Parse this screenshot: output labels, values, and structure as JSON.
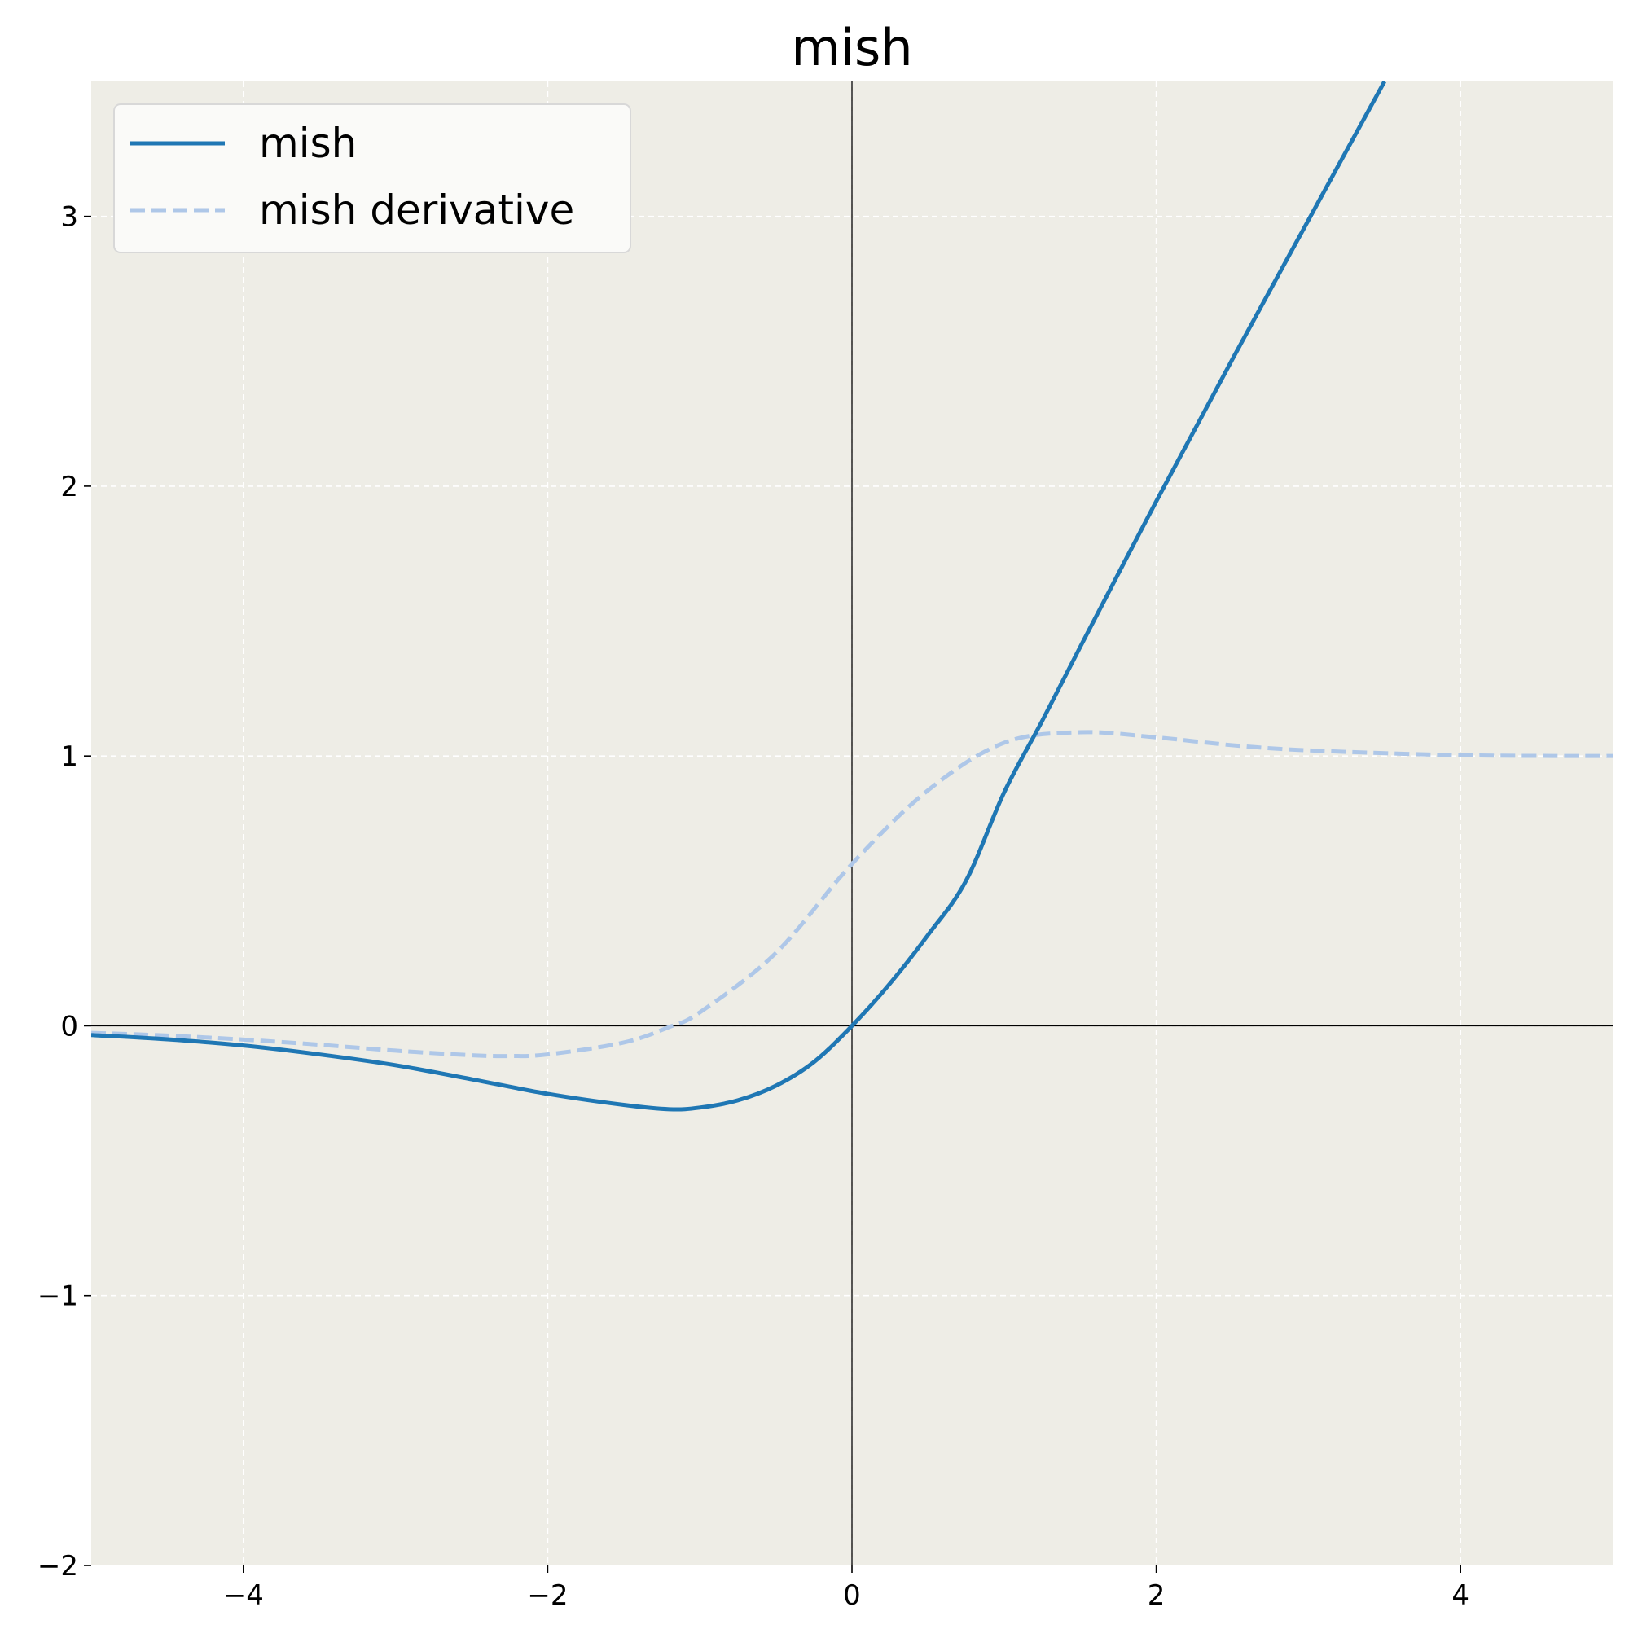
{
  "chart_data": {
    "type": "line",
    "title": "mish",
    "xlabel": "",
    "ylabel": "",
    "xlim": [
      -5,
      5
    ],
    "ylim": [
      -2,
      3.5
    ],
    "x_ticks": [
      -4,
      -2,
      0,
      2,
      4
    ],
    "x_tick_labels": [
      "−4",
      "−2",
      "0",
      "2",
      "4"
    ],
    "y_ticks": [
      -2,
      -1,
      0,
      1,
      2,
      3
    ],
    "y_tick_labels": [
      "−2",
      "−1",
      "0",
      "1",
      "2",
      "3"
    ],
    "grid": true,
    "legend_position": "top-left",
    "plot_background": "#eeede6",
    "grid_color": "#ffffff",
    "axis_line_color": "#000000",
    "series": [
      {
        "name": "mish",
        "style": "solid",
        "color": "#1f77b4",
        "x": [
          -5,
          -4.5,
          -4,
          -3.5,
          -3,
          -2.5,
          -2,
          -1.5,
          -1.2,
          -1,
          -0.75,
          -0.5,
          -0.25,
          0,
          0.25,
          0.5,
          0.75,
          1,
          1.25,
          1.5,
          2,
          2.5,
          3,
          3.5
        ],
        "y": [
          -0.034,
          -0.05,
          -0.073,
          -0.106,
          -0.146,
          -0.198,
          -0.252,
          -0.293,
          -0.309,
          -0.303,
          -0.276,
          -0.222,
          -0.134,
          0,
          0.157,
          0.337,
          0.538,
          0.865,
          1.13,
          1.404,
          1.944,
          2.47,
          2.986,
          3.5
        ]
      },
      {
        "name": "mish derivative",
        "style": "dashed",
        "color": "#aec7e8",
        "x": [
          -5,
          -4.5,
          -4,
          -3.5,
          -3,
          -2.5,
          -2.25,
          -2,
          -1.5,
          -1.2,
          -1,
          -0.5,
          0,
          0.5,
          1,
          1.5,
          2,
          2.5,
          3,
          4,
          5
        ],
        "y": [
          -0.026,
          -0.036,
          -0.051,
          -0.07,
          -0.092,
          -0.109,
          -0.112,
          -0.106,
          -0.062,
          -0.004,
          0.05,
          0.27,
          0.6,
          0.873,
          1.049,
          1.088,
          1.069,
          1.04,
          1.021,
          1.003,
          1.0
        ]
      }
    ]
  }
}
